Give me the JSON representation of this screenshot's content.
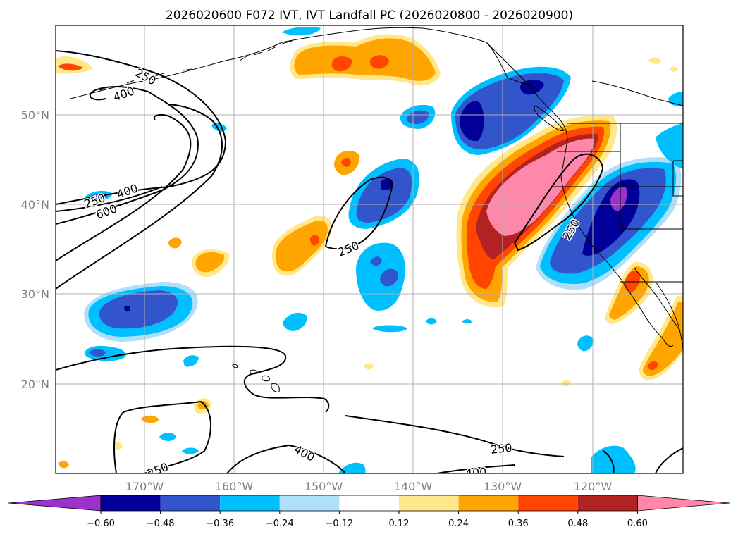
{
  "title": "2026020600 F072 IVT, IVT Landfall PC (2026020800 - 2026020900)",
  "map": {
    "lat_ticks": [
      "50°N",
      "40°N",
      "30°N",
      "20°N"
    ],
    "lon_ticks": [
      "170°W",
      "160°W",
      "150°W",
      "140°W",
      "130°W",
      "120°W"
    ],
    "contour_levels": [
      "250",
      "400",
      "600"
    ],
    "contour_labels": [
      "250",
      "400",
      "250",
      "400",
      "600",
      "250",
      "250",
      "400",
      "250",
      "400",
      "250"
    ]
  },
  "colorbar": {
    "ticks": [
      "−0.60",
      "−0.48",
      "−0.36",
      "−0.24",
      "−0.12",
      "0.12",
      "0.24",
      "0.36",
      "0.48",
      "0.60"
    ],
    "colors": [
      "#9933cc",
      "#000099",
      "#3355cc",
      "#00bfff",
      "#aee0fa",
      "#ffffff",
      "#ffe78a",
      "#ffa500",
      "#ff4500",
      "#b22222",
      "#ff88aa"
    ]
  },
  "colors": {
    "neg_strong": "#000099",
    "neg_mid": "#3355cc",
    "neg_light": "#00bfff",
    "neg_pale": "#aee0fa",
    "pos_pale": "#ffe78a",
    "pos_light": "#ffa500",
    "pos_mid": "#ff4500",
    "pos_strong": "#b22222",
    "pos_max": "#ff88aa",
    "purple": "#9933cc"
  }
}
